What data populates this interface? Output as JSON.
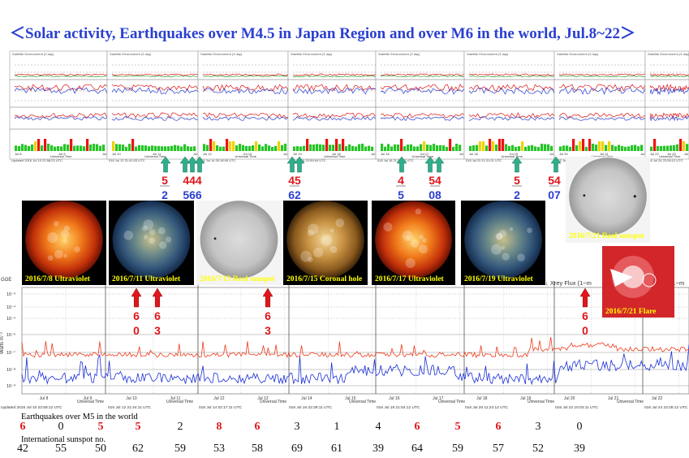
{
  "title": "＜Solar activity, Earthquakes over M4.5 in Japan Region and over M6 in the world, Jul.8~22＞",
  "colors": {
    "title": "#2a3fd0",
    "green_arrow": "#2fae8c",
    "red_arrow": "#e0161b",
    "red_text": "#e0161b",
    "blue_text": "#2a3fd0",
    "caption": "#ffff00"
  },
  "top_panel": {
    "frames": [
      {
        "header": "Satellite Environment (3 day)",
        "axis_dates": [
          "Jul 8",
          "Jul 9",
          "Jul 10"
        ],
        "updated": "Updated 2016 Jul 10 22:58:23 UTC"
      },
      {
        "header": "Satellite Environment (3 day)",
        "axis_dates": [
          "Jul 10",
          "Jul 11",
          "Jul 12"
        ],
        "updated": "016 Jul 12 21:41:03 UTC"
      },
      {
        "header": "Satellite Environment (3 day)",
        "axis_dates": [
          "Jul 12",
          "Jul 13",
          "Jul 14"
        ],
        "updated": "016 Jul 14 00:18:05 UTC"
      },
      {
        "header": "Satellite Environment (3 day)",
        "axis_dates": [
          "Jul 14",
          "Jul 15",
          "Jul 16"
        ],
        "updated": "016 Jul 16 22:59:04 UTC"
      },
      {
        "header": "Satellite Environment (3 day)",
        "axis_dates": [
          "Jul 16",
          "Jul 17",
          "Jul 18"
        ],
        "updated": "016 Jul 18 21:54:23 UTC"
      },
      {
        "header": "Satellite Environment (3 day)",
        "axis_dates": [
          "Jul 18",
          "Jul 19",
          "Jul 20"
        ],
        "updated": "016 Jul 20 11:31:01 UTC"
      },
      {
        "header": "Satellite Environment (3 day)",
        "axis_dates": [
          "Jul 20",
          "Jul 21",
          "Jul 22"
        ],
        "updated": "016 Jul 22 10:12:29 UTC"
      },
      {
        "header": "Satellite Environment (3 day)",
        "axis_dates": [
          "Jul 22",
          "Jul 23",
          "Jul 24"
        ],
        "updated": "016 Jul 24 23:28:12 UTC"
      }
    ],
    "universal_time": "Universal Time"
  },
  "japan_quakes": [
    {
      "top": "5",
      "bottom": "2"
    },
    {
      "top": "444",
      "bottom": "566"
    },
    {
      "top": "45",
      "bottom": "62"
    },
    {
      "top": "4",
      "bottom": "5"
    },
    {
      "top": "54",
      "bottom": "08"
    },
    {
      "top": "5",
      "bottom": "2"
    },
    {
      "top": "54",
      "bottom": "07"
    }
  ],
  "world_quakes": [
    {
      "top": "6",
      "bottom": "0"
    },
    {
      "top": "6",
      "bottom": "3"
    },
    {
      "top": "6",
      "bottom": "3"
    },
    {
      "top": "6",
      "bottom": "0"
    }
  ],
  "images": [
    {
      "caption": "2016/7/8 Ultraviolet",
      "kind": "uv-red"
    },
    {
      "caption": "2016/7/11 Ultraviolet",
      "kind": "uv-blue"
    },
    {
      "caption": "2016/7/13 Real sunspot",
      "kind": "white"
    },
    {
      "caption": "2016/7/15 Coronal hole",
      "kind": "gold"
    },
    {
      "caption": "2016/7/17 Ultraviolet",
      "kind": "uv-red"
    },
    {
      "caption": "2016/7/19 Ultraviolet",
      "kind": "uv-blue"
    },
    {
      "caption": "2016/7/21 Real sunspot",
      "kind": "white"
    },
    {
      "caption": "2016/7/21 Flare",
      "kind": "flare"
    }
  ],
  "xray": {
    "left_label": "GOE",
    "right_label": "↓ Xrey Flux (1−m",
    "right_label_2": "(1−m",
    "ylabel": "Watts m⁻²",
    "yticks": [
      "10⁻³",
      "10⁻⁴",
      "10⁻⁵",
      "10⁻⁶",
      "10⁻⁷",
      "10⁻⁸",
      "10⁻⁹"
    ],
    "dates": [
      "Jul 8",
      "Jul 9",
      "Jul 10",
      "Jul 11",
      "Jul 12",
      "Jul 13",
      "Jul 14",
      "Jul 15",
      "Jul 16",
      "Jul 17",
      "Jul 18",
      "Jul 19",
      "Jul 20",
      "Jul 21",
      "Jul 22"
    ],
    "universal_time": "Universal Time",
    "updated": [
      "Updated 2016 Jul 10 22:58:12 UTC",
      "016 Jul 12 21:44:11 UTC",
      "016 Jul 14 02:17:11 UTC",
      "016 Jul 16 22:39:11 UTC",
      "016 Jul 18 21:54:12 UTC",
      "016 Jul 20 11:24:12 UTC",
      "016 Jul 22 10:03:11 UTC",
      "016 Jul 24 23:28:12 UTC"
    ]
  },
  "table": {
    "quake_label": "Earthquakes over M5 in the world",
    "sunspot_label": "International sunspot no.",
    "quakes": [
      {
        "value": "6",
        "red": true
      },
      {
        "value": "0",
        "red": false
      },
      {
        "value": "5",
        "red": true
      },
      {
        "value": "5",
        "red": true
      },
      {
        "value": "2",
        "red": false
      },
      {
        "value": "8",
        "red": true
      },
      {
        "value": "6",
        "red": true
      },
      {
        "value": "3",
        "red": false
      },
      {
        "value": "1",
        "red": false
      },
      {
        "value": "4",
        "red": false
      },
      {
        "value": "6",
        "red": true
      },
      {
        "value": "5",
        "red": true
      },
      {
        "value": "6",
        "red": true
      },
      {
        "value": "3",
        "red": false
      },
      {
        "value": "0",
        "red": false
      }
    ],
    "sunspots": [
      "42",
      "55",
      "50",
      "62",
      "59",
      "53",
      "58",
      "69",
      "61",
      "39",
      "64",
      "59",
      "57",
      "52",
      "39"
    ]
  }
}
